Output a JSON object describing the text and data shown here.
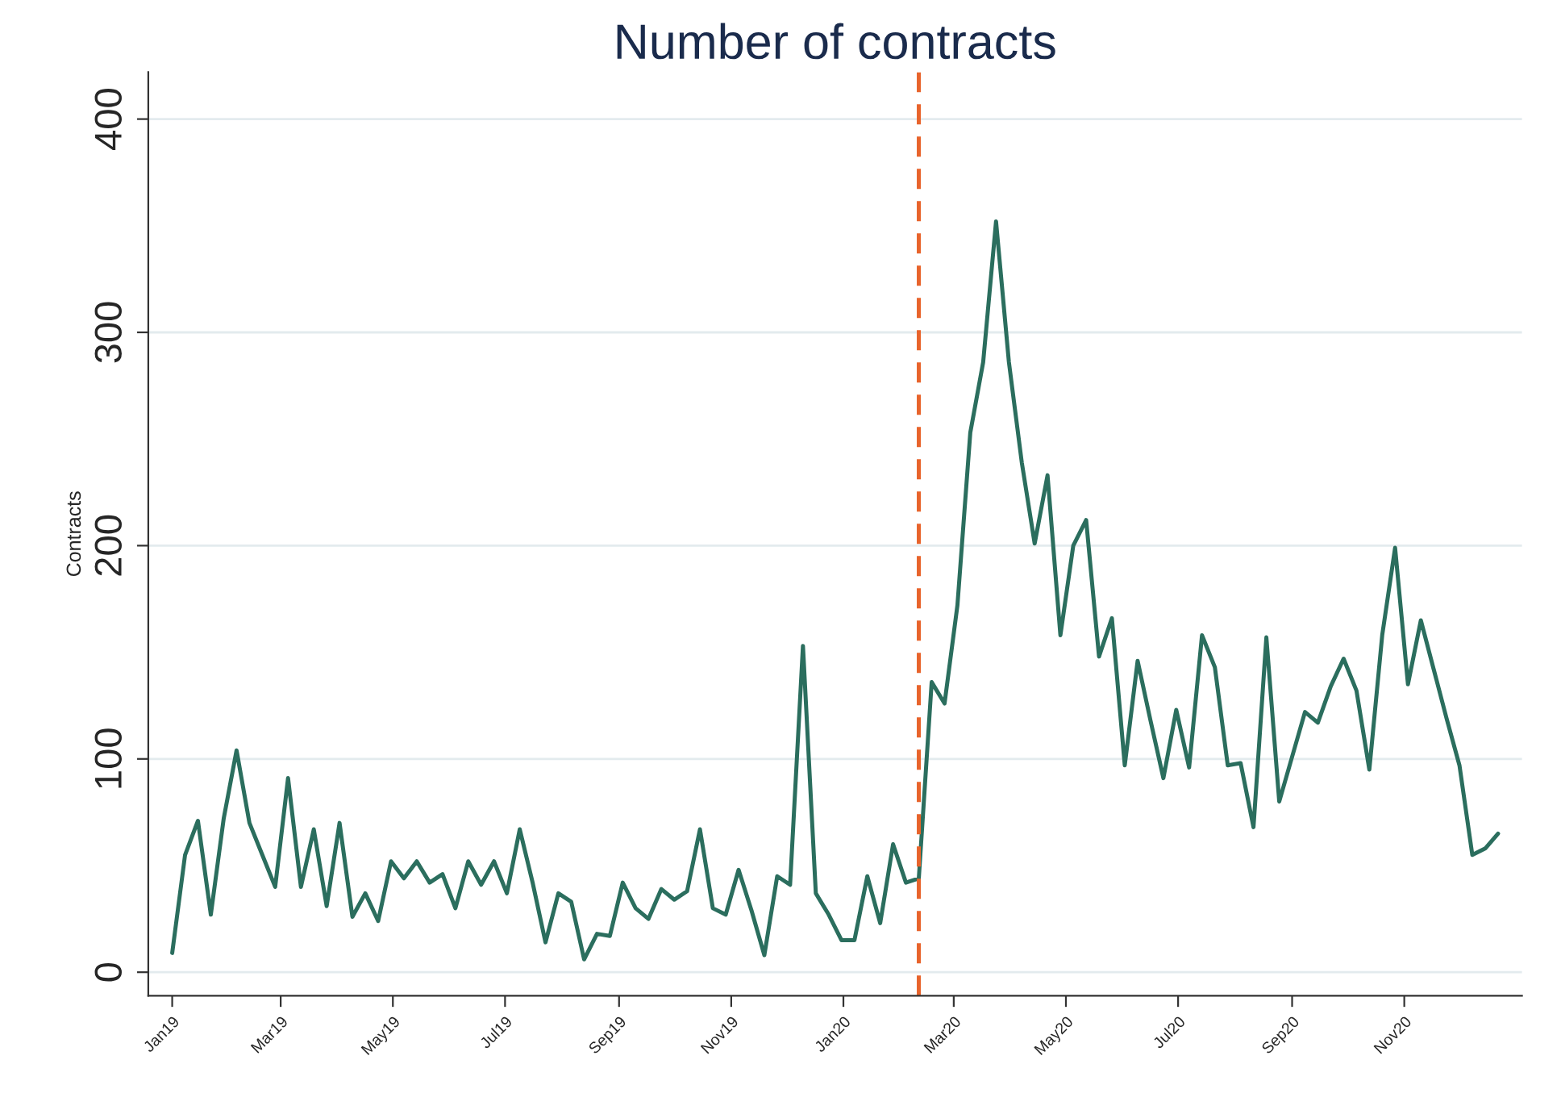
{
  "chart_data": {
    "type": "line",
    "title": "Number of contracts",
    "ylabel": "Contracts",
    "x": [
      "2019-01-01",
      "2019-01-08",
      "2019-01-15",
      "2019-01-22",
      "2019-01-29",
      "2019-02-05",
      "2019-02-12",
      "2019-02-19",
      "2019-02-26",
      "2019-03-05",
      "2019-03-12",
      "2019-03-19",
      "2019-03-26",
      "2019-04-02",
      "2019-04-09",
      "2019-04-16",
      "2019-04-23",
      "2019-04-30",
      "2019-05-07",
      "2019-05-14",
      "2019-05-21",
      "2019-05-28",
      "2019-06-04",
      "2019-06-11",
      "2019-06-18",
      "2019-06-25",
      "2019-07-02",
      "2019-07-09",
      "2019-07-16",
      "2019-07-23",
      "2019-07-30",
      "2019-08-06",
      "2019-08-13",
      "2019-08-20",
      "2019-08-27",
      "2019-09-03",
      "2019-09-10",
      "2019-09-17",
      "2019-09-24",
      "2019-10-01",
      "2019-10-08",
      "2019-10-15",
      "2019-10-22",
      "2019-10-29",
      "2019-11-05",
      "2019-11-12",
      "2019-11-19",
      "2019-11-26",
      "2019-12-03",
      "2019-12-10",
      "2019-12-17",
      "2019-12-24",
      "2019-12-31",
      "2020-01-07",
      "2020-01-14",
      "2020-01-21",
      "2020-01-28",
      "2020-02-04",
      "2020-02-11",
      "2020-02-18",
      "2020-02-25",
      "2020-03-03",
      "2020-03-10",
      "2020-03-17",
      "2020-03-24",
      "2020-03-31",
      "2020-04-07",
      "2020-04-14",
      "2020-04-21",
      "2020-04-28",
      "2020-05-05",
      "2020-05-12",
      "2020-05-19",
      "2020-05-26",
      "2020-06-02",
      "2020-06-09",
      "2020-06-16",
      "2020-06-23",
      "2020-06-30",
      "2020-07-07",
      "2020-07-14",
      "2020-07-21",
      "2020-07-28",
      "2020-08-04",
      "2020-08-11",
      "2020-08-18",
      "2020-08-25",
      "2020-09-01",
      "2020-09-08",
      "2020-09-15",
      "2020-09-22",
      "2020-09-29",
      "2020-10-06",
      "2020-10-13",
      "2020-10-20",
      "2020-10-27",
      "2020-11-03",
      "2020-11-10",
      "2020-11-17",
      "2020-11-24",
      "2020-12-01",
      "2020-12-08",
      "2020-12-15",
      "2020-12-22"
    ],
    "series": [
      {
        "color": "#2b6e5e",
        "values": [
          9,
          55,
          71,
          27,
          72,
          104,
          70,
          55,
          40,
          91,
          40,
          67,
          31,
          70,
          26,
          37,
          24,
          52,
          44,
          52,
          42,
          46,
          30,
          52,
          41,
          52,
          37,
          67,
          42,
          14,
          37,
          33,
          6,
          18,
          17,
          42,
          30,
          25,
          39,
          34,
          38,
          67,
          30,
          27,
          48,
          29,
          8,
          45,
          41,
          153,
          37,
          27,
          15,
          15,
          45,
          23,
          60,
          42,
          44,
          136,
          126,
          172,
          253,
          286,
          352,
          286,
          239,
          201,
          233,
          158,
          200,
          212,
          148,
          166,
          97,
          146,
          118,
          91,
          123,
          96,
          158,
          143,
          97,
          98,
          68,
          157,
          80,
          101,
          122,
          117,
          134,
          147,
          132,
          95,
          158,
          199,
          135,
          165,
          142,
          119,
          97,
          55,
          58,
          65
        ]
      }
    ],
    "xlim": [
      "2018-12-19",
      "2021-01-04"
    ],
    "xticks": [
      {
        "value": "2019-01-01",
        "label": "Jan19"
      },
      {
        "value": "2019-03-01",
        "label": "Mar19"
      },
      {
        "value": "2019-05-01",
        "label": "May19"
      },
      {
        "value": "2019-07-01",
        "label": "Jul19"
      },
      {
        "value": "2019-09-01",
        "label": "Sep19"
      },
      {
        "value": "2019-11-01",
        "label": "Nov19"
      },
      {
        "value": "2020-01-01",
        "label": "Jan20"
      },
      {
        "value": "2020-03-01",
        "label": "Mar20"
      },
      {
        "value": "2020-05-01",
        "label": "May20"
      },
      {
        "value": "2020-07-01",
        "label": "Jul20"
      },
      {
        "value": "2020-09-01",
        "label": "Sep20"
      },
      {
        "value": "2020-11-01",
        "label": "Nov20"
      }
    ],
    "ylim": [
      -11,
      422
    ],
    "yticks": [
      0,
      100,
      200,
      300,
      400
    ],
    "grid": "y",
    "ref_lines": [
      {
        "axis": "x",
        "value": "2020-02-11",
        "color": "#e8632b",
        "line_style": "dashed"
      }
    ]
  }
}
